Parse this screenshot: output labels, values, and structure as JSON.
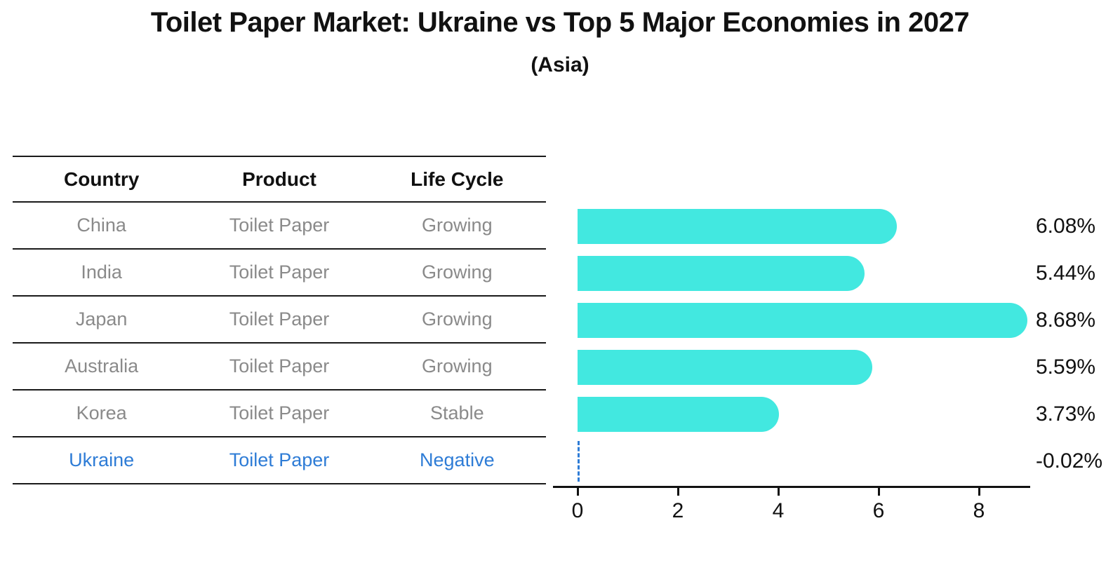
{
  "title": "Toilet Paper Market: Ukraine vs Top 5 Major Economies in 2027",
  "subtitle": "(Asia)",
  "table": {
    "headers": [
      "Country",
      "Product",
      "Life Cycle"
    ],
    "rows": [
      {
        "country": "China",
        "product": "Toilet Paper",
        "life_cycle": "Growing",
        "highlighted": false
      },
      {
        "country": "India",
        "product": "Toilet Paper",
        "life_cycle": "Growing",
        "highlighted": false
      },
      {
        "country": "Japan",
        "product": "Toilet Paper",
        "life_cycle": "Growing",
        "highlighted": false
      },
      {
        "country": "Australia",
        "product": "Toilet Paper",
        "life_cycle": "Growing",
        "highlighted": false
      },
      {
        "country": "Korea",
        "product": "Toilet Paper",
        "life_cycle": "Stable",
        "highlighted": false
      },
      {
        "country": "Ukraine",
        "product": "Toilet Paper",
        "life_cycle": "Negative",
        "highlighted": true
      }
    ]
  },
  "chart_data": {
    "type": "bar",
    "orientation": "horizontal",
    "categories": [
      "China",
      "India",
      "Japan",
      "Australia",
      "Korea",
      "Ukraine"
    ],
    "values": [
      6.08,
      5.44,
      8.68,
      5.59,
      3.73,
      -0.02
    ],
    "labels": [
      "6.08%",
      "5.44%",
      "8.68%",
      "5.59%",
      "3.73%",
      "-0.02%"
    ],
    "xlabel": "",
    "ylabel": "",
    "xlim": [
      0,
      9
    ],
    "x_ticks": [
      0,
      2,
      4,
      6,
      8
    ],
    "grid": false,
    "legend": "none",
    "bar_color": "#42e8e0",
    "highlight_color": "#2e7cd6",
    "axis_color": "#111111",
    "row_text_color": "#8a8a8a"
  }
}
